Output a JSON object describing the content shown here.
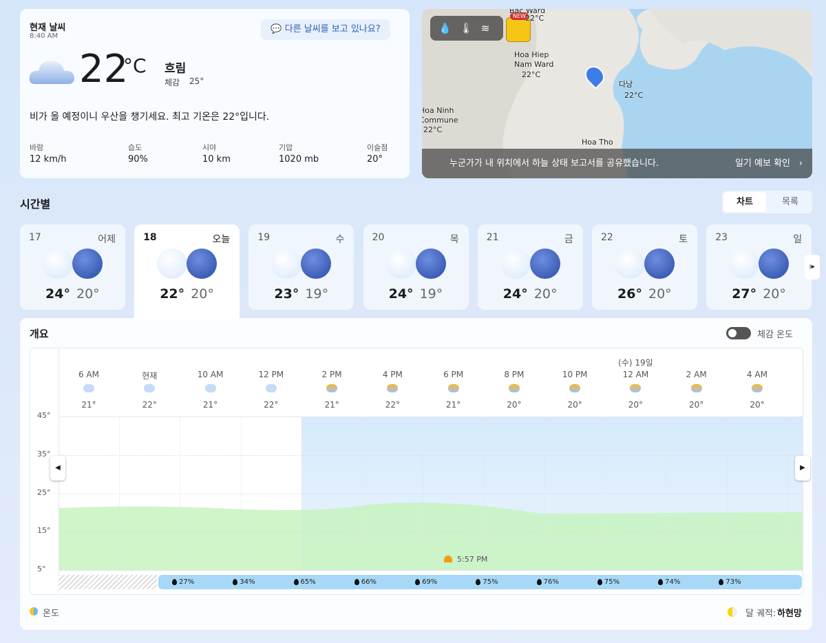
{
  "current": {
    "title": "현재 날씨",
    "time": "8:40 AM",
    "temperature": "22",
    "unit": "°C",
    "condition": "흐림",
    "feels_like_label": "체감",
    "feels_like": "25°",
    "feedback": "다른 날씨를 보고 있나요?",
    "summary": "비가 올 예정이니 우산을 챙기세요. 최고 기온은 22°입니다.",
    "details": [
      {
        "label": "바람",
        "value": "12 km/h"
      },
      {
        "label": "습도",
        "value": "90%"
      },
      {
        "label": "시야",
        "value": "10 km"
      },
      {
        "label": "기압",
        "value": "1020 mb"
      },
      {
        "label": "이슬점",
        "value": "20°"
      }
    ]
  },
  "map": {
    "badge": "NEW",
    "places": [
      {
        "name": "Bac Ward",
        "temp": "22°C"
      },
      {
        "name": "Hoa Hiep Nam Ward",
        "temp": "22°C"
      },
      {
        "name": "다낭",
        "temp": "22°C"
      },
      {
        "name": "Hoa Ninh Commune",
        "temp": "22°C"
      },
      {
        "name": "Hoa Tho"
      }
    ],
    "banner": "누군가가 내 위치에서 하늘 상태 보고서를 공유했습니다.",
    "link": "일기 예보 확인"
  },
  "hourly": {
    "title": "시간별",
    "views": [
      "차트",
      "목록"
    ],
    "days": [
      {
        "date": "17",
        "weekday": "어제",
        "high": "24°",
        "low": "20°"
      },
      {
        "date": "18",
        "weekday": "오늘",
        "high": "22°",
        "low": "20°"
      },
      {
        "date": "19",
        "weekday": "수",
        "high": "23°",
        "low": "19°"
      },
      {
        "date": "20",
        "weekday": "목",
        "high": "24°",
        "low": "19°"
      },
      {
        "date": "21",
        "weekday": "금",
        "high": "24°",
        "low": "20°"
      },
      {
        "date": "22",
        "weekday": "토",
        "high": "26°",
        "low": "20°"
      },
      {
        "date": "23",
        "weekday": "일",
        "high": "27°",
        "low": "20°"
      }
    ]
  },
  "overview": {
    "title": "개요",
    "feels_like_toggle": "체감 온도",
    "date_marker": "(수) 19일",
    "hours": [
      {
        "time": "6 AM",
        "temp": "21°"
      },
      {
        "time": "현재",
        "temp": "22°"
      },
      {
        "time": "10 AM",
        "temp": "21°"
      },
      {
        "time": "12 PM",
        "temp": "22°"
      },
      {
        "time": "2 PM",
        "temp": "21°"
      },
      {
        "time": "4 PM",
        "temp": "22°"
      },
      {
        "time": "6 PM",
        "temp": "21°"
      },
      {
        "time": "8 PM",
        "temp": "20°"
      },
      {
        "time": "10 PM",
        "temp": "20°"
      },
      {
        "time": "12 AM",
        "temp": "20°"
      },
      {
        "time": "2 AM",
        "temp": "20°"
      },
      {
        "time": "4 AM",
        "temp": "20°"
      }
    ],
    "yticks": [
      "45°",
      "35°",
      "25°",
      "15°",
      "5°"
    ],
    "sunset": "5:57 PM",
    "precipitation": [
      "27%",
      "34%",
      "65%",
      "66%",
      "69%",
      "75%",
      "76%",
      "75%",
      "74%",
      "73%"
    ],
    "legend": "온도",
    "moon_label": "달 궤적:",
    "moon_phase": "하현망"
  }
}
